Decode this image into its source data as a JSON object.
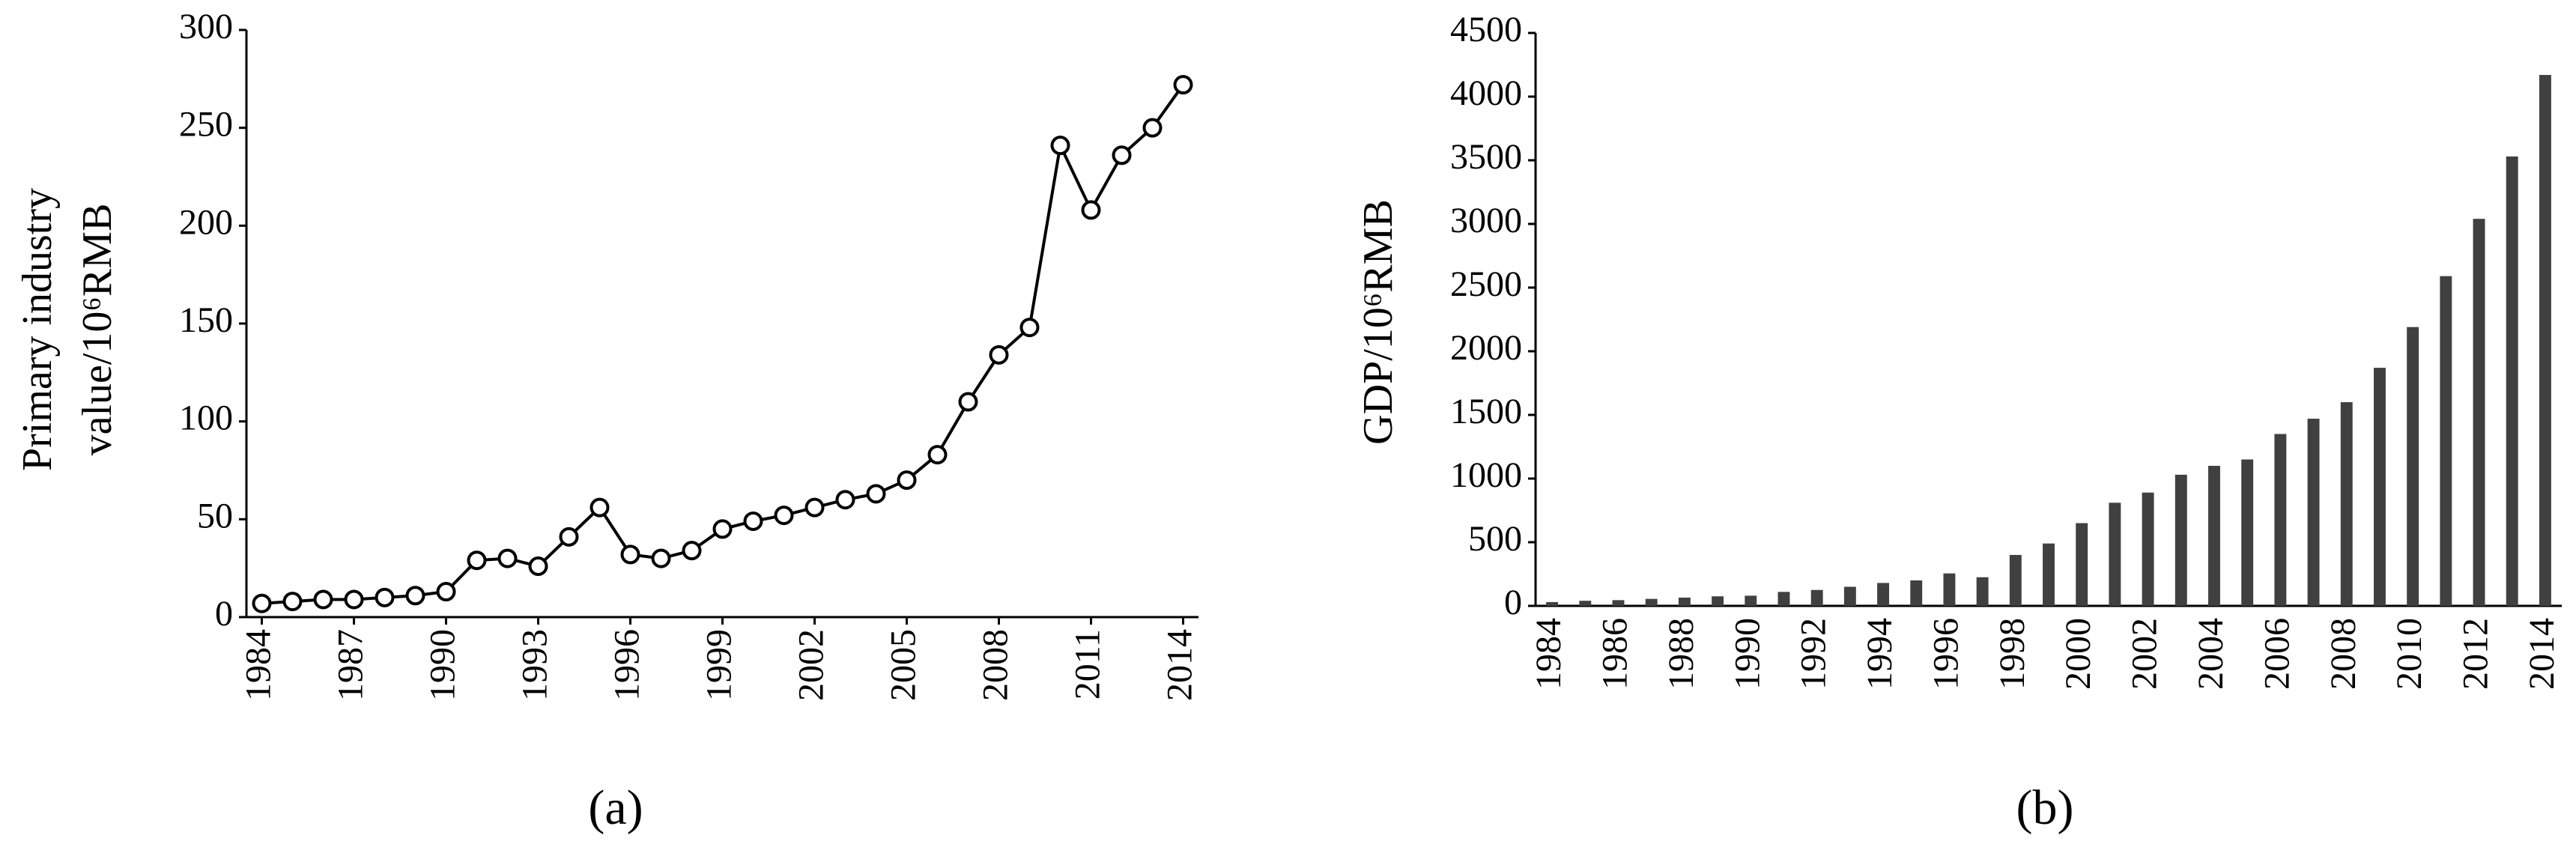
{
  "chart_data": [
    {
      "type": "line",
      "ylabel": [
        "Primary industry",
        "value/10⁶RMB"
      ],
      "caption": "(a)",
      "x": [
        1984,
        1985,
        1986,
        1987,
        1988,
        1989,
        1990,
        1991,
        1992,
        1993,
        1994,
        1995,
        1996,
        1997,
        1998,
        1999,
        2000,
        2001,
        2002,
        2003,
        2004,
        2005,
        2006,
        2007,
        2008,
        2009,
        2010,
        2011,
        2012,
        2013,
        2014
      ],
      "values": [
        7,
        8,
        9,
        9,
        10,
        11,
        13,
        29,
        30,
        26,
        41,
        56,
        32,
        30,
        34,
        45,
        49,
        52,
        56,
        60,
        63,
        70,
        83,
        110,
        134,
        148,
        241,
        208,
        236,
        250,
        272
      ],
      "color": "#000000",
      "xlim": [
        1983.5,
        2014.5
      ],
      "xticks": [
        1984,
        1987,
        1990,
        1993,
        1996,
        1999,
        2002,
        2005,
        2008,
        2011,
        2014
      ],
      "ylim": [
        0,
        300
      ],
      "yticks": [
        0,
        50,
        100,
        150,
        200,
        250,
        300
      ]
    },
    {
      "type": "bar",
      "ylabel": "GDP/10⁶RMB",
      "caption": "(b)",
      "categories": [
        "1984",
        null,
        "1986",
        null,
        "1988",
        null,
        "1990",
        null,
        "1992",
        null,
        "1994",
        null,
        "1996",
        null,
        "1998",
        null,
        "2000",
        null,
        "2002",
        null,
        "2004",
        null,
        "2006",
        null,
        "2008",
        null,
        "2010",
        null,
        "2012",
        null,
        "2014"
      ],
      "values": [
        30,
        40,
        45,
        55,
        65,
        75,
        80,
        110,
        125,
        150,
        180,
        200,
        255,
        225,
        400,
        490,
        650,
        810,
        890,
        1030,
        1100,
        1150,
        1350,
        1470,
        1600,
        1870,
        2190,
        2590,
        3040,
        3530,
        4170
      ],
      "color": "#404040",
      "ylim": [
        0,
        4500
      ],
      "yticks": [
        0,
        500,
        1000,
        1500,
        2000,
        2500,
        3000,
        3500,
        4000,
        4500
      ]
    }
  ]
}
